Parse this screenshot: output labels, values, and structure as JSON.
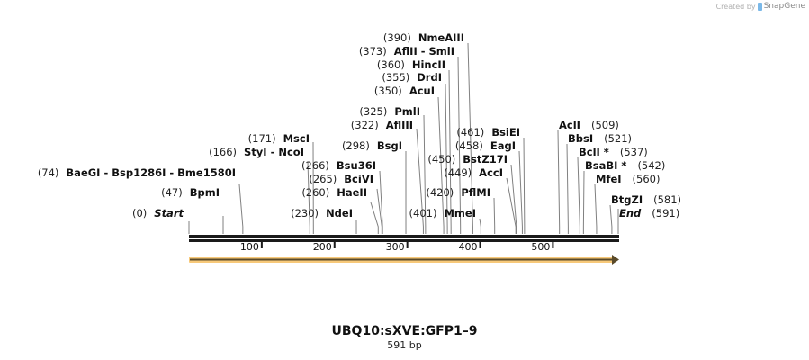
{
  "watermark": {
    "prefix": "Created by",
    "brand": "SnapGene"
  },
  "map": {
    "title": "UBQ10:sXVE:GFP1–9",
    "length_label": "591 bp",
    "length": 591,
    "ruler_ticks": [
      100,
      200,
      300,
      400,
      500
    ],
    "feature": {
      "name": "feature-arrow",
      "start": 1,
      "end": 591,
      "direction": "forward",
      "color": "#f5c46b",
      "line_color": "#5a4a2a"
    },
    "ends": [
      {
        "label": "Start",
        "pos": "(0)",
        "bp": 0
      },
      {
        "label": "End",
        "pos": "(591)",
        "bp": 591
      }
    ],
    "sites": [
      {
        "pos": "(47)",
        "names": "BpmI",
        "bp": 47
      },
      {
        "pos": "(74)",
        "names": "BaeGI  - Bsp1286I  - Bme1580I",
        "bp": 74
      },
      {
        "pos": "(166)",
        "names": "StyI  - NcoI",
        "bp": 166
      },
      {
        "pos": "(171)",
        "names": "MscI",
        "bp": 171
      },
      {
        "pos": "(230)",
        "names": "NdeI",
        "bp": 230
      },
      {
        "pos": "(260)",
        "names": "HaeII",
        "bp": 260
      },
      {
        "pos": "(265)",
        "names": "BciVI",
        "bp": 265
      },
      {
        "pos": "(266)",
        "names": "Bsu36I",
        "bp": 266
      },
      {
        "pos": "(298)",
        "names": "BsgI",
        "bp": 298
      },
      {
        "pos": "(322)",
        "names": "AflIII",
        "bp": 322
      },
      {
        "pos": "(325)",
        "names": "PmlI",
        "bp": 325
      },
      {
        "pos": "(350)",
        "names": "AcuI",
        "bp": 350
      },
      {
        "pos": "(355)",
        "names": "DrdI",
        "bp": 355
      },
      {
        "pos": "(360)",
        "names": "HincII",
        "bp": 360
      },
      {
        "pos": "(373)",
        "names": "AflII  - SmlI",
        "bp": 373
      },
      {
        "pos": "(390)",
        "names": "NmeAIII",
        "bp": 390
      },
      {
        "pos": "(401)",
        "names": "MmeI",
        "bp": 401
      },
      {
        "pos": "(420)",
        "names": "PflMI",
        "bp": 420
      },
      {
        "pos": "(449)",
        "names": "AccI",
        "bp": 449
      },
      {
        "pos": "(450)",
        "names": "BstZ17I",
        "bp": 450
      },
      {
        "pos": "(458)",
        "names": "EagI",
        "bp": 458
      },
      {
        "pos": "(461)",
        "names": "BsiEI",
        "bp": 461
      },
      {
        "pos": "(509)",
        "names": "AclI",
        "bp": 509
      },
      {
        "pos": "(521)",
        "names": "BbsI",
        "bp": 521
      },
      {
        "pos": "(537)",
        "names": "BclI *",
        "bp": 537
      },
      {
        "pos": "(542)",
        "names": "BsaBI *",
        "bp": 542
      },
      {
        "pos": "(560)",
        "names": "MfeI",
        "bp": 560
      },
      {
        "pos": "(581)",
        "names": "BtgZI",
        "bp": 581
      }
    ]
  }
}
